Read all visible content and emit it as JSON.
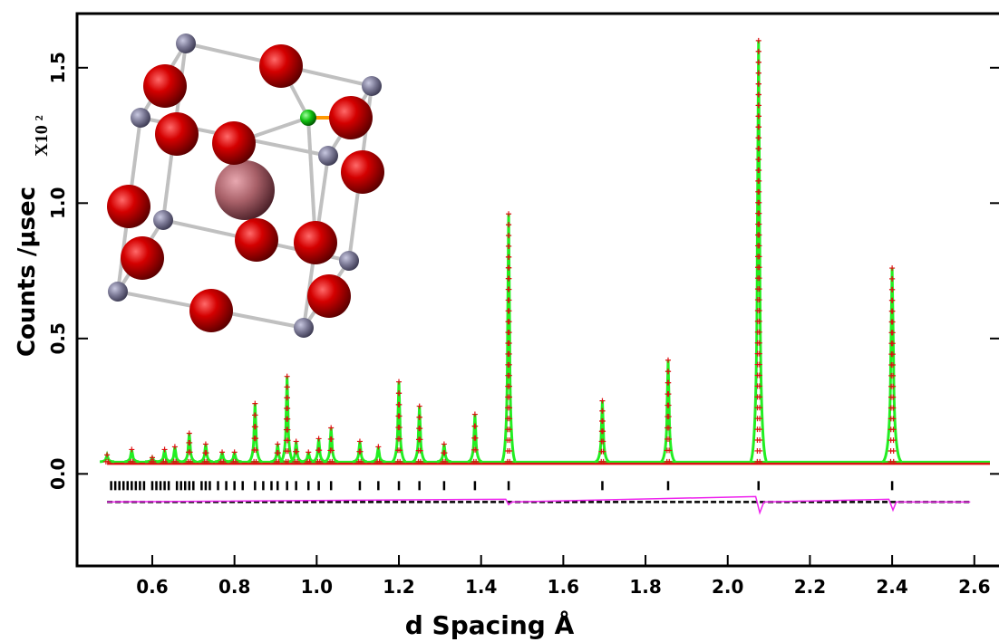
{
  "chart_data": {
    "type": "powder-diffraction",
    "y_label": "Counts /μsec",
    "y_multiplier": "X10 ²",
    "x_label": "d Spacing Å",
    "xlim": [
      0.417,
      2.66
    ],
    "ylim": [
      -0.34,
      1.7
    ],
    "xticks": [
      0.6,
      0.8,
      {
        "value": 1,
        "label": "1.0"
      },
      1.2,
      1.4,
      1.6,
      1.8,
      {
        "value": 2,
        "label": "2.0"
      },
      2.2,
      2.4,
      2.6
    ],
    "yticks": [
      {
        "value": 0,
        "label": "0.0"
      },
      0.5,
      {
        "value": 1,
        "label": "1.0"
      },
      1.5
    ],
    "background": 0.045,
    "calculated_color": "#22ee22",
    "observed_color": "#dd1111",
    "reflection_color": "#000000",
    "difference_color": "#ee22ee",
    "peaks": {
      "d": [
        0.49,
        0.55,
        0.6,
        0.63,
        0.655,
        0.69,
        0.73,
        0.77,
        0.8,
        0.85,
        0.905,
        0.928,
        0.95,
        0.98,
        1.005,
        1.035,
        1.105,
        1.15,
        1.2,
        1.25,
        1.31,
        1.385,
        1.467,
        1.695,
        1.855,
        2.075,
        2.4
      ],
      "calculated": [
        0.07,
        0.09,
        0.06,
        0.09,
        0.1,
        0.15,
        0.11,
        0.08,
        0.08,
        0.26,
        0.11,
        0.36,
        0.12,
        0.08,
        0.13,
        0.17,
        0.12,
        0.1,
        0.34,
        0.25,
        0.11,
        0.22,
        0.96,
        0.27,
        0.42,
        1.6,
        0.76
      ],
      "observed": [
        0.07,
        0.09,
        0.06,
        0.09,
        0.1,
        0.15,
        0.11,
        0.08,
        0.08,
        0.26,
        0.11,
        0.36,
        0.12,
        0.08,
        0.13,
        0.17,
        0.12,
        0.1,
        0.34,
        0.25,
        0.11,
        0.22,
        0.96,
        0.27,
        0.42,
        1.6,
        0.76
      ]
    },
    "reflections": [
      0.5,
      0.51,
      0.52,
      0.53,
      0.54,
      0.55,
      0.56,
      0.57,
      0.58,
      0.6,
      0.61,
      0.62,
      0.63,
      0.64,
      0.66,
      0.67,
      0.68,
      0.69,
      0.7,
      0.72,
      0.73,
      0.74,
      0.76,
      0.78,
      0.8,
      0.82,
      0.85,
      0.87,
      0.89,
      0.905,
      0.928,
      0.95,
      0.98,
      1.005,
      1.035,
      1.105,
      1.15,
      1.2,
      1.25,
      1.31,
      1.385,
      1.467,
      1.695,
      1.855,
      2.075,
      2.4
    ],
    "difference": {
      "x": [
        0.49,
        1.46,
        1.467,
        1.475,
        2.068,
        2.078,
        2.088,
        2.392,
        2.402,
        2.41,
        2.59
      ],
      "values": [
        0,
        0.01,
        -0.01,
        0,
        0.02,
        -0.04,
        0,
        0.01,
        -0.03,
        0,
        0
      ]
    }
  }
}
